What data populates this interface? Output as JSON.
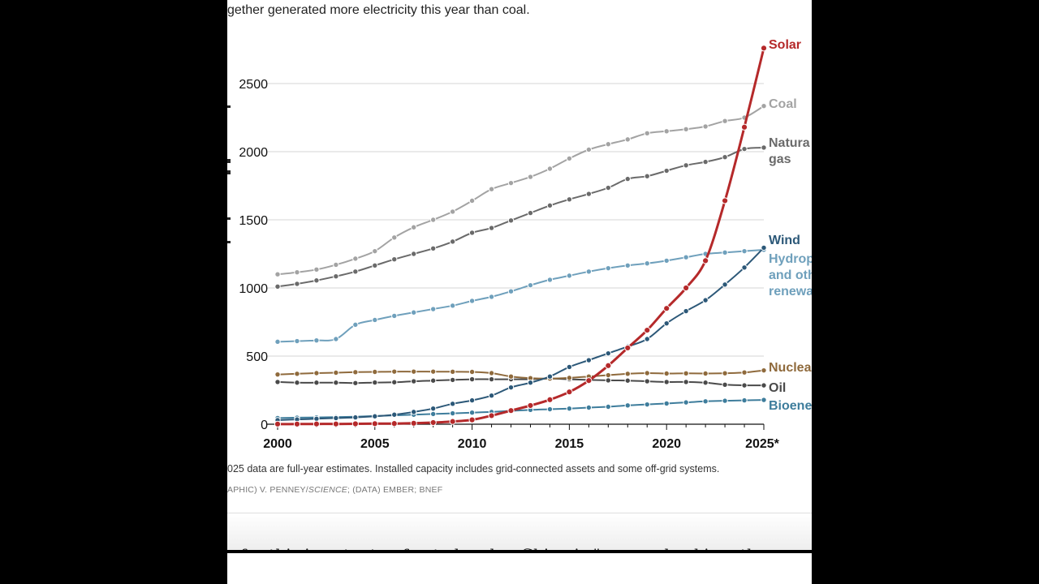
{
  "intro_text": "gether generated more electricity this year than coal.",
  "footnote": "025 data are full-year estimates. Installed capacity includes grid-connected assets and some off-grid systems.",
  "credit_prefix": "APHIC) V. PENNEY/",
  "credit_em": "SCIENCE",
  "credit_suffix": "; (DATA) EMBER; BNEF",
  "body_snippet": "r for this is not a ten-fo...ted...ed.... China is \"...g...ard...ckin... the",
  "colors": {
    "solar": "#b5292a",
    "coal": "#a3a3a3",
    "gas": "#6a6a6a",
    "wind": "#2c5878",
    "hydro": "#6fa0bc",
    "nuclear": "#8f6a3c",
    "oil": "#4a4a4a",
    "bioenergy": "#3e7d9c"
  },
  "chart_data": {
    "type": "line",
    "x": [
      2000,
      2001,
      2002,
      2003,
      2004,
      2005,
      2006,
      2007,
      2008,
      2009,
      2010,
      2011,
      2012,
      2013,
      2014,
      2015,
      2016,
      2017,
      2018,
      2019,
      2020,
      2021,
      2022,
      2023,
      2024,
      2025
    ],
    "x_tick_labels": [
      "2000",
      "2005",
      "2010",
      "2015",
      "2020",
      "2025*"
    ],
    "y_ticks": [
      0,
      500,
      1000,
      1500,
      2000,
      2500
    ],
    "ylim": [
      0,
      2800
    ],
    "grid": true,
    "legend": "direct labels at right end of each line",
    "series": [
      {
        "name": "Solar",
        "color": "#b5292a",
        "label_lines": [
          "Solar"
        ],
        "values": [
          1,
          1,
          2,
          2,
          3,
          4,
          5,
          7,
          12,
          20,
          32,
          63,
          100,
          137,
          180,
          237,
          320,
          430,
          560,
          690,
          850,
          1000,
          1200,
          1640,
          2180,
          2760
        ]
      },
      {
        "name": "Coal",
        "color": "#a3a3a3",
        "label_lines": [
          "Coal"
        ],
        "values": [
          1100,
          1115,
          1135,
          1170,
          1215,
          1270,
          1370,
          1445,
          1500,
          1560,
          1640,
          1725,
          1770,
          1815,
          1875,
          1950,
          2015,
          2055,
          2090,
          2135,
          2150,
          2165,
          2185,
          2225,
          2250,
          2335
        ]
      },
      {
        "name": "Natural gas",
        "color": "#6a6a6a",
        "label_lines": [
          "Natura",
          "gas"
        ],
        "values": [
          1010,
          1030,
          1055,
          1085,
          1120,
          1165,
          1210,
          1250,
          1290,
          1340,
          1405,
          1440,
          1495,
          1550,
          1605,
          1650,
          1690,
          1735,
          1800,
          1820,
          1860,
          1900,
          1925,
          1960,
          2020,
          2030
        ]
      },
      {
        "name": "Wind",
        "color": "#2c5878",
        "label_lines": [
          "Wind"
        ],
        "values": [
          30,
          35,
          40,
          45,
          50,
          58,
          70,
          90,
          115,
          150,
          175,
          210,
          270,
          305,
          350,
          420,
          470,
          520,
          570,
          625,
          740,
          830,
          910,
          1025,
          1150,
          1295
        ]
      },
      {
        "name": "Hydropower and other renewables",
        "color": "#6fa0bc",
        "label_lines": [
          "Hydrop",
          "and oth",
          "renewa"
        ],
        "values": [
          605,
          610,
          615,
          625,
          730,
          765,
          795,
          820,
          845,
          870,
          905,
          935,
          975,
          1020,
          1060,
          1090,
          1120,
          1145,
          1165,
          1180,
          1200,
          1225,
          1250,
          1260,
          1270,
          1280
        ]
      },
      {
        "name": "Nuclear",
        "color": "#8f6a3c",
        "label_lines": [
          "Nuclea"
        ],
        "values": [
          365,
          370,
          375,
          378,
          382,
          384,
          386,
          386,
          386,
          385,
          384,
          375,
          350,
          338,
          335,
          340,
          350,
          360,
          370,
          375,
          372,
          373,
          372,
          374,
          380,
          395
        ]
      },
      {
        "name": "Oil",
        "color": "#4a4a4a",
        "label_lines": [
          "Oil"
        ],
        "values": [
          310,
          305,
          305,
          305,
          302,
          306,
          308,
          315,
          320,
          325,
          330,
          330,
          330,
          330,
          335,
          330,
          325,
          322,
          320,
          315,
          310,
          310,
          305,
          290,
          285,
          285
        ]
      },
      {
        "name": "Bioenergy",
        "color": "#3e7d9c",
        "label_lines": [
          "Bioene"
        ],
        "values": [
          45,
          48,
          50,
          52,
          55,
          60,
          65,
          70,
          75,
          80,
          85,
          90,
          98,
          105,
          110,
          115,
          122,
          128,
          138,
          145,
          152,
          160,
          168,
          172,
          175,
          178
        ]
      }
    ]
  }
}
